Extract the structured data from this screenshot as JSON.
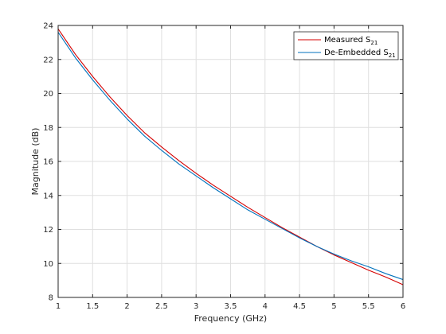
{
  "chart_data": {
    "type": "line",
    "title": "",
    "xlabel": "Frequency (GHz)",
    "ylabel": "Magnitude (dB)",
    "xlim": [
      1,
      6
    ],
    "ylim": [
      8,
      24
    ],
    "xticks": [
      1,
      1.5,
      2,
      2.5,
      3,
      3.5,
      4,
      4.5,
      5,
      5.5,
      6
    ],
    "yticks": [
      8,
      10,
      12,
      14,
      16,
      18,
      20,
      22,
      24
    ],
    "grid": true,
    "legend_position": "top-right",
    "series": [
      {
        "name": "Measured S21",
        "legend_base": "Measured S",
        "legend_sub": "21",
        "color": "#d40000",
        "x": [
          1.0,
          1.25,
          1.5,
          1.75,
          2.0,
          2.25,
          2.5,
          2.75,
          3.0,
          3.25,
          3.5,
          3.75,
          4.0,
          4.25,
          4.5,
          4.75,
          5.0,
          5.25,
          5.5,
          5.75,
          6.0
        ],
        "y": [
          23.8,
          22.3,
          21.0,
          19.8,
          18.7,
          17.7,
          16.85,
          16.05,
          15.3,
          14.6,
          13.95,
          13.3,
          12.7,
          12.1,
          11.55,
          11.0,
          10.5,
          10.05,
          9.6,
          9.2,
          8.75
        ]
      },
      {
        "name": "De-Embedded S21",
        "legend_base": "De-Embedded S",
        "legend_sub": "21",
        "color": "#0072bd",
        "x": [
          1.0,
          1.25,
          1.5,
          1.75,
          2.0,
          2.25,
          2.5,
          2.75,
          3.0,
          3.25,
          3.5,
          3.75,
          4.0,
          4.25,
          4.5,
          4.75,
          5.0,
          5.25,
          5.5,
          5.75,
          6.0
        ],
        "y": [
          23.6,
          22.1,
          20.8,
          19.6,
          18.5,
          17.5,
          16.65,
          15.85,
          15.15,
          14.45,
          13.8,
          13.15,
          12.6,
          12.05,
          11.5,
          11.0,
          10.55,
          10.15,
          9.8,
          9.4,
          9.05
        ]
      }
    ]
  }
}
